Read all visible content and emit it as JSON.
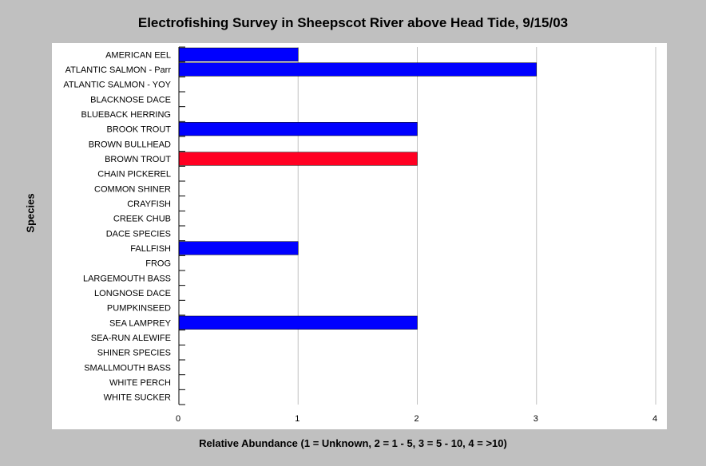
{
  "chart_data": {
    "type": "bar",
    "orientation": "horizontal",
    "title": "Electrofishing Survey in Sheepscot River above Head Tide, 9/15/03",
    "xlabel": "Relative Abundance (1 = Unknown, 2 = 1 - 5, 3 = 5 - 10, 4 = >10)",
    "ylabel": "Species",
    "xlim": [
      0,
      4
    ],
    "xticks": [
      "0",
      "1",
      "2",
      "3",
      "4"
    ],
    "grid": "vertical",
    "categories": [
      "AMERICAN EEL",
      "ATLANTIC SALMON - Parr",
      "ATLANTIC SALMON - YOY",
      "BLACKNOSE DACE",
      "BLUEBACK HERRING",
      "BROOK TROUT",
      "BROWN BULLHEAD",
      "BROWN TROUT",
      "CHAIN PICKEREL",
      "COMMON SHINER",
      "CRAYFISH",
      "CREEK CHUB",
      "DACE SPECIES",
      "FALLFISH",
      "FROG",
      "LARGEMOUTH BASS",
      "LONGNOSE DACE",
      "PUMPKINSEED",
      "SEA LAMPREY",
      "SEA-RUN ALEWIFE",
      "SHINER SPECIES",
      "SMALLMOUTH BASS",
      "WHITE PERCH",
      "WHITE SUCKER"
    ],
    "values": [
      1,
      3,
      0,
      0,
      0,
      2,
      0,
      2,
      0,
      0,
      0,
      0,
      0,
      1,
      0,
      0,
      0,
      0,
      2,
      0,
      0,
      0,
      0,
      0
    ],
    "bar_colors": [
      "#0000ff",
      "#0000ff",
      "#0000ff",
      "#0000ff",
      "#0000ff",
      "#0000ff",
      "#0000ff",
      "#ff0022",
      "#0000ff",
      "#0000ff",
      "#0000ff",
      "#0000ff",
      "#0000ff",
      "#0000ff",
      "#0000ff",
      "#0000ff",
      "#0000ff",
      "#0000ff",
      "#0000ff",
      "#0000ff",
      "#0000ff",
      "#0000ff",
      "#0000ff",
      "#0000ff"
    ],
    "colors": {
      "background": "#c0c0c0",
      "plot": "#ffffff",
      "grid": "#c0c0c0",
      "default_bar": "#0000ff",
      "highlight_bar": "#ff0022"
    }
  }
}
